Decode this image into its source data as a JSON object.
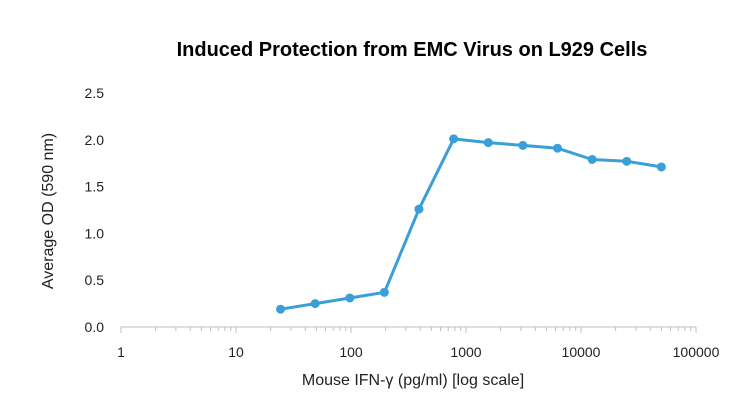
{
  "chart_data": {
    "type": "line",
    "title": "Induced Protection from EMC Virus on L929 Cells",
    "xlabel": "Mouse IFN-γ (pg/ml) [log scale]",
    "ylabel": "Average OD (590 nm)",
    "x_scale": "log",
    "xlim": [
      1,
      100000
    ],
    "ylim": [
      0,
      2.5
    ],
    "x_ticks": [
      1,
      10,
      100,
      1000,
      10000,
      100000
    ],
    "x_tick_labels": [
      "1",
      "10",
      "100",
      "1000",
      "10000",
      "100000"
    ],
    "y_ticks": [
      0,
      0.5,
      1.0,
      1.5,
      2.0,
      2.5
    ],
    "y_tick_labels": [
      "0.0",
      "0.5",
      "1.0",
      "1.5",
      "2.0",
      "2.5"
    ],
    "grid": false,
    "legend": "none",
    "series": [
      {
        "color": "#3a9fd8",
        "x": [
          24.4,
          48.8,
          97.7,
          195,
          390,
          781,
          1563,
          3125,
          6250,
          12500,
          25000,
          50000
        ],
        "y": [
          0.19,
          0.25,
          0.31,
          0.37,
          1.26,
          2.01,
          1.97,
          1.94,
          1.91,
          1.79,
          1.77,
          1.71
        ]
      }
    ]
  }
}
